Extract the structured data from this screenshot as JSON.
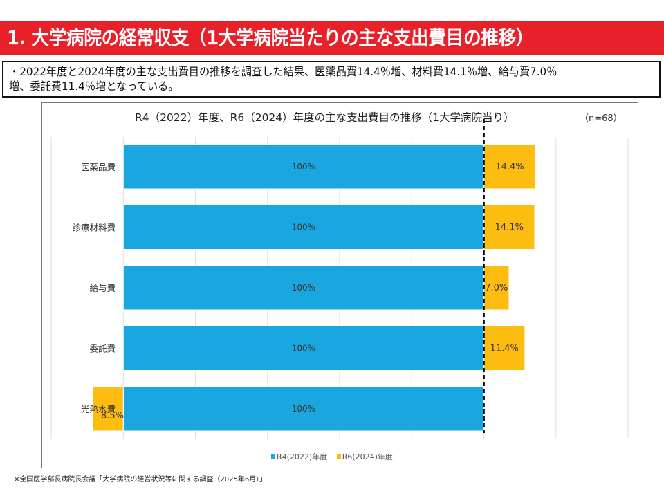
{
  "header": {
    "title": "1. 大学病院の経常収支（1大学病院当たりの主な支出費目の推移）"
  },
  "summary": {
    "text": "・2022年度と2024年度の主な支出費目の推移を調査した結果、医薬品費14.4％増、材料費14.1％増、給与費7.0％\n増、委託費11.4％増となっている。"
  },
  "chart_data": {
    "type": "bar",
    "orientation": "horizontal",
    "stacked": true,
    "title": "R4（2022）年度、R6（2024）年度の主な支出費目の推移（1大学病院当り）",
    "note": "（n=68）",
    "categories": [
      "医薬品費",
      "診療材料費",
      "給与費",
      "委託費",
      "光熱水費"
    ],
    "series": [
      {
        "name": "R4(2022)年度",
        "color": "#1aa7e0",
        "values": [
          100,
          100,
          100,
          100,
          100
        ],
        "labels": [
          "100%",
          "100%",
          "100%",
          "100%",
          "100%"
        ]
      },
      {
        "name": "R6(2024)年度",
        "color": "#fdbd10",
        "values": [
          14.4,
          14.1,
          7.0,
          11.4,
          -8.5
        ],
        "labels": [
          "14.4%",
          "14.1%",
          "7.0%",
          "11.4%",
          "-8.5%"
        ]
      }
    ],
    "xlim": [
      -20,
      140
    ],
    "grid_step": 20,
    "grid": true,
    "reference_line": {
      "value": 100,
      "style": "dashed",
      "color": "#000000"
    },
    "legend_position": "bottom",
    "xlabel": "",
    "ylabel": ""
  },
  "legend": {
    "items": [
      {
        "label": "R4(2022)年度",
        "color": "#1aa7e0"
      },
      {
        "label": "R6(2024)年度",
        "color": "#fdbd10"
      }
    ]
  },
  "footnote": "※全国医学部長病院長会議「大学病院の経営状況等に関する調査（2025年6月）」"
}
